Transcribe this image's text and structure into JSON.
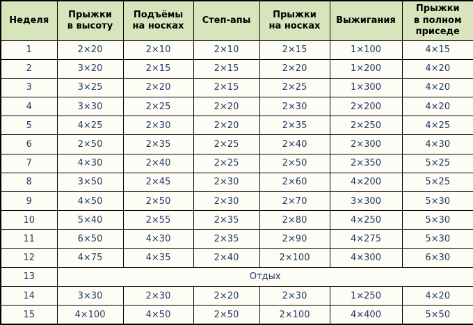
{
  "chart_data": {
    "type": "table",
    "title": "",
    "columns": [
      "Неделя",
      "Прыжки\nв высоту",
      "Подъёмы\nна носках",
      "Степ-апы",
      "Прыжки\nна носках",
      "Выжигания",
      "Прыжки\nв полном\nприседе"
    ],
    "rows": [
      {
        "week": "1",
        "cells": [
          "2×20",
          "2×10",
          "2×10",
          "2×15",
          "1×100",
          "4×15"
        ]
      },
      {
        "week": "2",
        "cells": [
          "3×20",
          "2×15",
          "2×15",
          "2×20",
          "1×200",
          "4×20"
        ]
      },
      {
        "week": "3",
        "cells": [
          "3×25",
          "2×20",
          "2×15",
          "2×25",
          "1×300",
          "4×20"
        ]
      },
      {
        "week": "4",
        "cells": [
          "3×30",
          "2×25",
          "2×20",
          "2×30",
          "2×200",
          "4×20"
        ]
      },
      {
        "week": "5",
        "cells": [
          "4×25",
          "2×30",
          "2×20",
          "2×35",
          "2×250",
          "4×25"
        ]
      },
      {
        "week": "6",
        "cells": [
          "2×50",
          "2×35",
          "2×25",
          "2×40",
          "2×300",
          "4×30"
        ]
      },
      {
        "week": "7",
        "cells": [
          "4×30",
          "2×40",
          "2×25",
          "2×50",
          "2×350",
          "5×25"
        ]
      },
      {
        "week": "8",
        "cells": [
          "3×50",
          "2×45",
          "2×30",
          "2×60",
          "4×200",
          "5×25"
        ]
      },
      {
        "week": "9",
        "cells": [
          "4×50",
          "2×50",
          "2×30",
          "2×70",
          "3×300",
          "5×30"
        ]
      },
      {
        "week": "10",
        "cells": [
          "5×40",
          "2×55",
          "2×35",
          "2×80",
          "4×250",
          "5×30"
        ]
      },
      {
        "week": "11",
        "cells": [
          "6×50",
          "4×30",
          "2×35",
          "2×90",
          "4×275",
          "5×30"
        ]
      },
      {
        "week": "12",
        "cells": [
          "4×75",
          "4×35",
          "2×40",
          "2×100",
          "4×300",
          "6×30"
        ]
      },
      {
        "week": "13",
        "merged": "Отдых"
      },
      {
        "week": "14",
        "cells": [
          "3×30",
          "2×30",
          "2×20",
          "2×30",
          "1×250",
          "4×20"
        ]
      },
      {
        "week": "15",
        "cells": [
          "4×100",
          "4×50",
          "2×50",
          "2×100",
          "4×400",
          "5×50"
        ]
      }
    ]
  },
  "colors": {
    "header_bg": "#d8e4bc",
    "cell_bg": "#fdfdf6",
    "border": "#000000",
    "header_text": "#000000",
    "data_text": "#1f3864"
  }
}
